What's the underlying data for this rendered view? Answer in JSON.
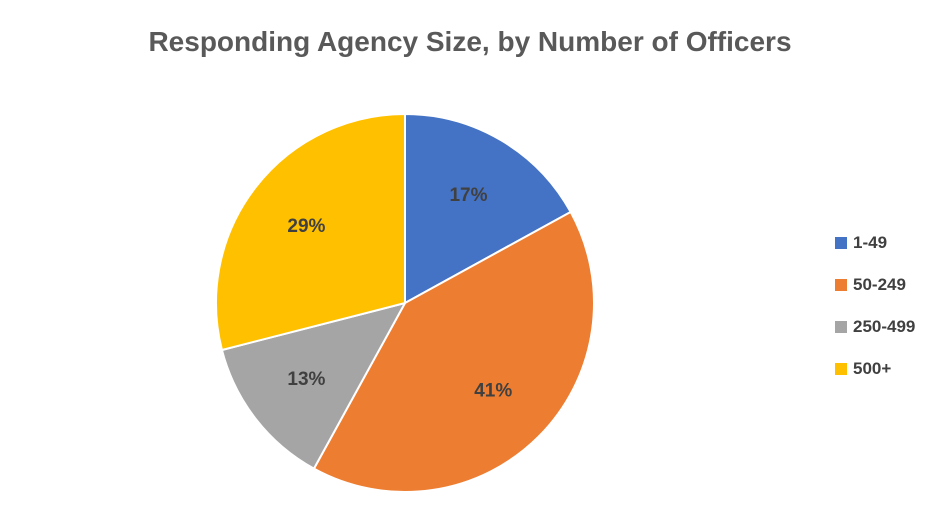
{
  "chart_data": {
    "type": "pie",
    "title": "Responding Agency Size, by Number of Officers",
    "categories": [
      "1-49",
      "50-249",
      "250-499",
      "500+"
    ],
    "values": [
      17,
      41,
      13,
      29
    ],
    "labels": [
      "17%",
      "41%",
      "13%",
      "29%"
    ],
    "colors": [
      "#4472C4",
      "#ED7D31",
      "#A5A5A5",
      "#FFC000"
    ],
    "legend_position": "right"
  }
}
